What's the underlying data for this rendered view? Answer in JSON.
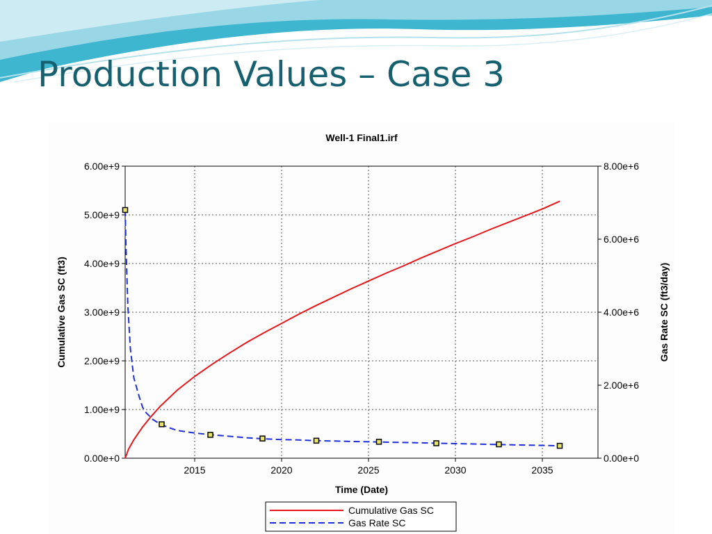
{
  "slide": {
    "title": "Production Values – Case 3",
    "accent_colors": [
      "#17606f",
      "#3fb6cf",
      "#9ad7e6"
    ]
  },
  "chart_data": {
    "type": "line",
    "title": "Well-1 Final1.irf",
    "xlabel": "Time (Date)",
    "ylabel_left": "Cumulative Gas SC (ft3)",
    "ylabel_right": "Gas Rate SC (ft3/day)",
    "xlim": [
      2011,
      2038.2
    ],
    "ylim_left": [
      0,
      6000000000
    ],
    "ylim_right": [
      0,
      8000000
    ],
    "x_ticks": [
      2015,
      2020,
      2025,
      2030,
      2035
    ],
    "y_left_ticks": [
      {
        "value": 0,
        "label": "0.00e+0"
      },
      {
        "value": 1000000000,
        "label": "1.00e+9"
      },
      {
        "value": 2000000000,
        "label": "2.00e+9"
      },
      {
        "value": 3000000000,
        "label": "3.00e+9"
      },
      {
        "value": 4000000000,
        "label": "4.00e+9"
      },
      {
        "value": 5000000000,
        "label": "5.00e+9"
      },
      {
        "value": 6000000000,
        "label": "6.00e+9"
      }
    ],
    "y_right_ticks": [
      {
        "value": 0,
        "label": "0.00e+0"
      },
      {
        "value": 2000000,
        "label": "2.00e+6"
      },
      {
        "value": 4000000,
        "label": "4.00e+6"
      },
      {
        "value": 6000000,
        "label": "6.00e+6"
      },
      {
        "value": 8000000,
        "label": "8.00e+6"
      }
    ],
    "grid": true,
    "legend_position": "bottom-center",
    "series": [
      {
        "name": "Cumulative Gas SC",
        "axis": "left",
        "color": "#e8161b",
        "dash": "solid",
        "x": [
          2011.0,
          2011.2,
          2011.5,
          2012.0,
          2012.5,
          2013.0,
          2014.0,
          2015.0,
          2016.0,
          2017.0,
          2018.0,
          2019.0,
          2020.0,
          2021.0,
          2022.0,
          2023.0,
          2024.0,
          2025.0,
          2026.0,
          2027.0,
          2028.0,
          2029.0,
          2030.0,
          2031.0,
          2032.0,
          2033.0,
          2034.0,
          2035.0,
          2036.0
        ],
        "y": [
          0,
          190000000,
          380000000,
          640000000,
          860000000,
          1060000000,
          1400000000,
          1680000000,
          1930000000,
          2160000000,
          2380000000,
          2580000000,
          2770000000,
          2960000000,
          3140000000,
          3310000000,
          3480000000,
          3640000000,
          3800000000,
          3950000000,
          4110000000,
          4260000000,
          4410000000,
          4550000000,
          4700000000,
          4840000000,
          4980000000,
          5120000000,
          5280000000
        ]
      },
      {
        "name": "Gas Rate SC",
        "axis": "right",
        "color": "#1f2fd6",
        "dash": "dashed",
        "x": [
          2011.0,
          2011.05,
          2011.15,
          2011.3,
          2011.5,
          2011.8,
          2012.0,
          2012.2,
          2012.6,
          2013.0,
          2013.5,
          2014.0,
          2015.0,
          2016.0,
          2017.0,
          2018.0,
          2019.0,
          2020.0,
          2021.0,
          2022.0,
          2023.0,
          2024.0,
          2025.0,
          2026.0,
          2027.0,
          2028.0,
          2029.0,
          2030.0,
          2031.0,
          2032.0,
          2033.0,
          2034.0,
          2035.0,
          2036.0
        ],
        "y": [
          6800000,
          5800000,
          4200000,
          3000000,
          2200000,
          1700000,
          1400000,
          1250000,
          1060000,
          940000,
          840000,
          760000,
          690000,
          640000,
          600000,
          560000,
          530000,
          510000,
          500000,
          480000,
          470000,
          460000,
          450000,
          440000,
          430000,
          420000,
          410000,
          400000,
          390000,
          380000,
          370000,
          360000,
          350000,
          340000
        ]
      }
    ],
    "markers": {
      "x": [
        2011.0,
        2013.1,
        2015.9,
        2018.9,
        2022.0,
        2025.6,
        2028.9,
        2032.5,
        2036.0
      ],
      "y": [
        6800000,
        930000,
        640000,
        540000,
        480000,
        450000,
        410000,
        380000,
        340000
      ]
    }
  }
}
